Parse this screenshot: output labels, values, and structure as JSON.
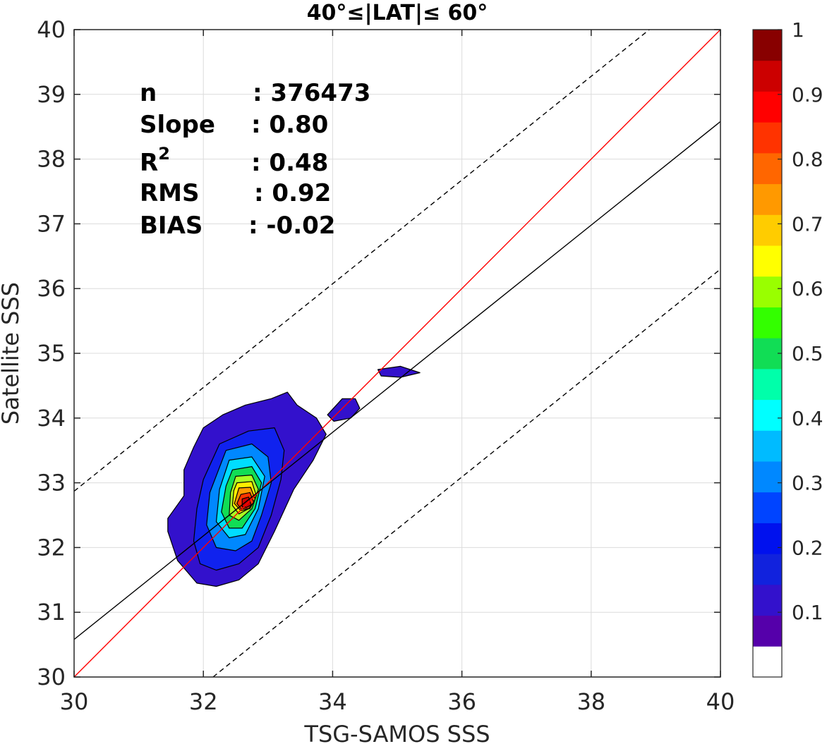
{
  "chart_data": {
    "type": "contour",
    "title": "40°≤|LAT|≤ 60°",
    "xlabel": "TSG-SAMOS SSS",
    "ylabel": "Satellite SSS",
    "xlim": [
      30,
      40
    ],
    "ylim": [
      30,
      40
    ],
    "xticks": [
      "30",
      "32",
      "34",
      "36",
      "38",
      "40"
    ],
    "yticks": [
      "30",
      "31",
      "32",
      "33",
      "34",
      "35",
      "36",
      "37",
      "38",
      "39",
      "40"
    ],
    "grid": true,
    "stats": [
      {
        "label": "n",
        "value": ": 376473"
      },
      {
        "label": "Slope",
        "value": ": 0.80"
      },
      {
        "label": "R",
        "sup": "2",
        "value": ": 0.48"
      },
      {
        "label": "RMS",
        "value": ": 0.92"
      },
      {
        "label": "BIAS",
        "value": ": -0.02"
      }
    ],
    "lines": [
      {
        "role": "one-to-one",
        "color": "#ff0000",
        "style": "solid",
        "x": [
          30,
          40
        ],
        "y": [
          30,
          40
        ]
      },
      {
        "role": "regression",
        "color": "#000000",
        "style": "solid",
        "x": [
          30,
          40
        ],
        "y": [
          30.58,
          38.58
        ]
      },
      {
        "role": "upper-bound",
        "color": "#000000",
        "style": "dashed",
        "x": [
          30,
          38.9
        ],
        "y": [
          32.87,
          40
        ]
      },
      {
        "role": "lower-bound",
        "color": "#000000",
        "style": "dashed",
        "x": [
          32.15,
          40
        ],
        "y": [
          30,
          36.3
        ]
      }
    ],
    "contour_levels": [
      {
        "level": 0.05,
        "color": "#3311cc",
        "polygon": [
          [
            32.3,
            34.05
          ],
          [
            32.65,
            34.2
          ],
          [
            33.05,
            34.3
          ],
          [
            33.3,
            34.4
          ],
          [
            33.45,
            34.2
          ],
          [
            33.75,
            34.0
          ],
          [
            33.9,
            33.75
          ],
          [
            33.7,
            33.35
          ],
          [
            33.4,
            32.9
          ],
          [
            33.1,
            32.25
          ],
          [
            32.85,
            31.75
          ],
          [
            32.55,
            31.5
          ],
          [
            32.2,
            31.4
          ],
          [
            31.9,
            31.45
          ],
          [
            31.6,
            31.8
          ],
          [
            31.45,
            32.25
          ],
          [
            31.45,
            32.45
          ],
          [
            31.7,
            32.8
          ],
          [
            31.7,
            33.2
          ],
          [
            31.85,
            33.55
          ],
          [
            32.0,
            33.85
          ]
        ]
      },
      {
        "level": 0.05,
        "color": "#3311cc",
        "polygon": [
          [
            33.92,
            34.05
          ],
          [
            34.15,
            34.3
          ],
          [
            34.35,
            34.3
          ],
          [
            34.42,
            34.15
          ],
          [
            34.28,
            34.0
          ],
          [
            34.02,
            33.95
          ]
        ]
      },
      {
        "level": 0.05,
        "color": "#3311cc",
        "polygon": [
          [
            34.7,
            34.75
          ],
          [
            35.05,
            34.8
          ],
          [
            35.35,
            34.7
          ],
          [
            35.05,
            34.63
          ],
          [
            34.75,
            34.65
          ]
        ]
      },
      {
        "level": 0.15,
        "color": "#1022ee",
        "polygon": [
          [
            32.25,
            33.6
          ],
          [
            32.7,
            33.8
          ],
          [
            33.1,
            33.85
          ],
          [
            33.25,
            33.5
          ],
          [
            33.2,
            33.05
          ],
          [
            33.05,
            32.5
          ],
          [
            32.85,
            32.0
          ],
          [
            32.55,
            31.75
          ],
          [
            32.2,
            31.65
          ],
          [
            31.95,
            31.75
          ],
          [
            31.85,
            32.1
          ],
          [
            31.9,
            32.6
          ],
          [
            32.0,
            33.05
          ]
        ]
      },
      {
        "level": 0.25,
        "color": "#0088ff",
        "polygon": [
          [
            32.35,
            33.5
          ],
          [
            32.75,
            33.6
          ],
          [
            33.0,
            33.4
          ],
          [
            33.05,
            33.0
          ],
          [
            32.9,
            32.5
          ],
          [
            32.75,
            32.1
          ],
          [
            32.5,
            31.95
          ],
          [
            32.2,
            32.0
          ],
          [
            32.05,
            32.35
          ],
          [
            32.1,
            32.85
          ]
        ]
      },
      {
        "level": 0.35,
        "color": "#00ddff",
        "polygon": [
          [
            32.4,
            33.35
          ],
          [
            32.75,
            33.4
          ],
          [
            32.95,
            33.1
          ],
          [
            32.85,
            32.6
          ],
          [
            32.65,
            32.2
          ],
          [
            32.4,
            32.15
          ],
          [
            32.2,
            32.4
          ],
          [
            32.25,
            32.9
          ]
        ]
      },
      {
        "level": 0.45,
        "color": "#11dd55",
        "polygon": [
          [
            32.45,
            33.2
          ],
          [
            32.75,
            33.25
          ],
          [
            32.9,
            33.0
          ],
          [
            32.8,
            32.6
          ],
          [
            32.6,
            32.3
          ],
          [
            32.4,
            32.3
          ],
          [
            32.28,
            32.55
          ],
          [
            32.35,
            32.95
          ]
        ]
      },
      {
        "level": 0.55,
        "color": "#aaff22",
        "polygon": [
          [
            32.5,
            33.1
          ],
          [
            32.75,
            33.12
          ],
          [
            32.85,
            32.9
          ],
          [
            32.75,
            32.6
          ],
          [
            32.55,
            32.42
          ],
          [
            32.4,
            32.5
          ],
          [
            32.42,
            32.85
          ]
        ]
      },
      {
        "level": 0.65,
        "color": "#ffee00",
        "polygon": [
          [
            32.52,
            33.0
          ],
          [
            32.75,
            33.02
          ],
          [
            32.82,
            32.8
          ],
          [
            32.7,
            32.6
          ],
          [
            32.55,
            32.52
          ],
          [
            32.45,
            32.65
          ],
          [
            32.47,
            32.88
          ]
        ]
      },
      {
        "level": 0.75,
        "color": "#ff9900",
        "polygon": [
          [
            32.55,
            32.92
          ],
          [
            32.73,
            32.93
          ],
          [
            32.8,
            32.75
          ],
          [
            32.72,
            32.6
          ],
          [
            32.58,
            32.57
          ],
          [
            32.48,
            32.68
          ]
        ]
      },
      {
        "level": 0.85,
        "color": "#ff3300",
        "polygon": [
          [
            32.58,
            32.82
          ],
          [
            32.72,
            32.85
          ],
          [
            32.78,
            32.7
          ],
          [
            32.7,
            32.6
          ],
          [
            32.58,
            32.6
          ],
          [
            32.52,
            32.68
          ]
        ]
      },
      {
        "level": 0.95,
        "color": "#cc0000",
        "polygon": [
          [
            32.6,
            32.75
          ],
          [
            32.7,
            32.78
          ],
          [
            32.74,
            32.66
          ],
          [
            32.67,
            32.62
          ],
          [
            32.6,
            32.63
          ]
        ]
      }
    ],
    "colorbar": {
      "ticks": [
        "0.1",
        "0.2",
        "0.3",
        "0.4",
        "0.5",
        "0.6",
        "0.7",
        "0.8",
        "0.9",
        "1"
      ],
      "min": 0,
      "max": 1,
      "colors": [
        "#ffffff",
        "#5500aa",
        "#3311cc",
        "#1122dd",
        "#0011ee",
        "#0044ff",
        "#0088ff",
        "#00bbff",
        "#00ffff",
        "#00ffaa",
        "#11dd55",
        "#33ff00",
        "#99ff00",
        "#ffff00",
        "#ffcc00",
        "#ff9900",
        "#ff6600",
        "#ff3300",
        "#ff0000",
        "#cc0000",
        "#880000"
      ]
    }
  }
}
